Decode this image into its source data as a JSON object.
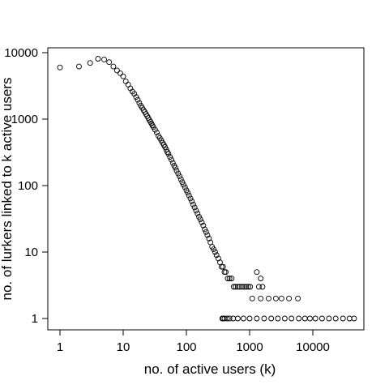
{
  "chart_data": {
    "type": "scatter",
    "title": "",
    "xlabel": "no. of active users (k)",
    "ylabel": "no. of lurkers linked to k active users",
    "x_scale": "log",
    "y_scale": "log",
    "xlim": [
      0.8,
      60000
    ],
    "ylim": [
      0.7,
      13000
    ],
    "x_ticks": [
      1,
      10,
      100,
      1000,
      10000
    ],
    "x_tick_labels": [
      "1",
      "10",
      "100",
      "1000",
      "10000"
    ],
    "y_ticks": [
      1,
      10,
      100,
      1000,
      10000
    ],
    "y_tick_labels": [
      "1",
      "10",
      "100",
      "1000",
      "10000"
    ],
    "grid": false,
    "marker": "open-circle",
    "series": [
      {
        "points": [
          [
            1,
            6000
          ],
          [
            2,
            6200
          ],
          [
            3,
            7000
          ],
          [
            4,
            8100
          ],
          [
            5,
            7900
          ],
          [
            6,
            7200
          ],
          [
            7,
            6200
          ],
          [
            8,
            5400
          ],
          [
            9,
            4900
          ],
          [
            10,
            4400
          ],
          [
            11,
            3700
          ],
          [
            12,
            3300
          ],
          [
            13,
            2900
          ],
          [
            14,
            2600
          ],
          [
            15,
            2400
          ],
          [
            16,
            2150
          ],
          [
            17,
            1950
          ],
          [
            18,
            1750
          ],
          [
            19,
            1600
          ],
          [
            20,
            1480
          ],
          [
            21,
            1370
          ],
          [
            22,
            1280
          ],
          [
            23,
            1190
          ],
          [
            24,
            1110
          ],
          [
            25,
            1040
          ],
          [
            26,
            970
          ],
          [
            27,
            910
          ],
          [
            28,
            860
          ],
          [
            29,
            810
          ],
          [
            30,
            760
          ],
          [
            32,
            690
          ],
          [
            34,
            630
          ],
          [
            36,
            560
          ],
          [
            38,
            520
          ],
          [
            40,
            480
          ],
          [
            42,
            440
          ],
          [
            44,
            410
          ],
          [
            46,
            380
          ],
          [
            48,
            350
          ],
          [
            50,
            320
          ],
          [
            52,
            300
          ],
          [
            55,
            270
          ],
          [
            58,
            245
          ],
          [
            61,
            220
          ],
          [
            64,
            200
          ],
          [
            67,
            185
          ],
          [
            70,
            168
          ],
          [
            74,
            152
          ],
          [
            78,
            138
          ],
          [
            82,
            125
          ],
          [
            86,
            113
          ],
          [
            90,
            103
          ],
          [
            95,
            94
          ],
          [
            100,
            85
          ],
          [
            105,
            78
          ],
          [
            110,
            71
          ],
          [
            116,
            64
          ],
          [
            122,
            58
          ],
          [
            128,
            52
          ],
          [
            135,
            47
          ],
          [
            142,
            42
          ],
          [
            150,
            38
          ],
          [
            158,
            34
          ],
          [
            166,
            31
          ],
          [
            175,
            28
          ],
          [
            185,
            25
          ],
          [
            195,
            22
          ],
          [
            205,
            20
          ],
          [
            215,
            18
          ],
          [
            228,
            16
          ],
          [
            240,
            14
          ],
          [
            255,
            12
          ],
          [
            270,
            11
          ],
          [
            285,
            10
          ],
          [
            300,
            9
          ],
          [
            320,
            8
          ],
          [
            340,
            7
          ],
          [
            360,
            6
          ],
          [
            380,
            6
          ],
          [
            400,
            5
          ],
          [
            420,
            5
          ],
          [
            450,
            4
          ],
          [
            480,
            4
          ],
          [
            520,
            4
          ],
          [
            560,
            3
          ],
          [
            600,
            3
          ],
          [
            650,
            3
          ],
          [
            700,
            3
          ],
          [
            760,
            3
          ],
          [
            820,
            3
          ],
          [
            880,
            3
          ],
          [
            950,
            3
          ],
          [
            1020,
            3
          ],
          [
            1300,
            5
          ],
          [
            1500,
            4
          ],
          [
            1400,
            3
          ],
          [
            1600,
            3
          ],
          [
            1100,
            2
          ],
          [
            1500,
            2
          ],
          [
            2000,
            2
          ],
          [
            2600,
            2
          ],
          [
            3200,
            2
          ],
          [
            4200,
            2
          ],
          [
            5800,
            2
          ],
          [
            370,
            1
          ],
          [
            380,
            1
          ],
          [
            400,
            1
          ],
          [
            440,
            1
          ],
          [
            480,
            1
          ],
          [
            550,
            1
          ],
          [
            650,
            1
          ],
          [
            800,
            1
          ],
          [
            1000,
            1
          ],
          [
            1300,
            1
          ],
          [
            1700,
            1
          ],
          [
            2200,
            1
          ],
          [
            2800,
            1
          ],
          [
            3600,
            1
          ],
          [
            4600,
            1
          ],
          [
            6000,
            1
          ],
          [
            7500,
            1
          ],
          [
            9000,
            1
          ],
          [
            11000,
            1
          ],
          [
            14000,
            1
          ],
          [
            18000,
            1
          ],
          [
            23000,
            1
          ],
          [
            30000,
            1
          ],
          [
            38000,
            1
          ],
          [
            45000,
            1
          ]
        ]
      }
    ]
  }
}
